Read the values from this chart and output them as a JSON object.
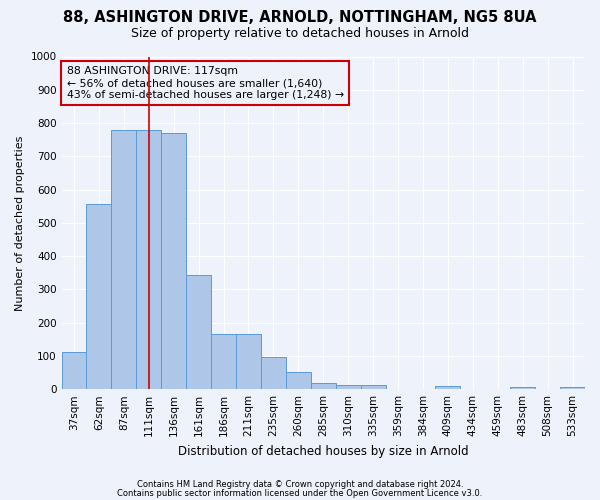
{
  "title1": "88, ASHINGTON DRIVE, ARNOLD, NOTTINGHAM, NG5 8UA",
  "title2": "Size of property relative to detached houses in Arnold",
  "xlabel": "Distribution of detached houses by size in Arnold",
  "ylabel": "Number of detached properties",
  "bar_labels": [
    "37sqm",
    "62sqm",
    "87sqm",
    "111sqm",
    "136sqm",
    "161sqm",
    "186sqm",
    "211sqm",
    "235sqm",
    "260sqm",
    "285sqm",
    "310sqm",
    "335sqm",
    "359sqm",
    "384sqm",
    "409sqm",
    "434sqm",
    "459sqm",
    "483sqm",
    "508sqm",
    "533sqm"
  ],
  "bar_values": [
    112,
    557,
    778,
    778,
    770,
    342,
    165,
    165,
    98,
    53,
    18,
    13,
    13,
    0,
    0,
    10,
    0,
    0,
    7,
    0,
    7
  ],
  "bar_color": "#aec6e8",
  "bar_edge_color": "#5b9bd5",
  "vline_x": 3.0,
  "vline_color": "#cc0000",
  "annotation_text": "88 ASHINGTON DRIVE: 117sqm\n← 56% of detached houses are smaller (1,640)\n43% of semi-detached houses are larger (1,248) →",
  "annotation_box_color": "#cc0000",
  "footer1": "Contains HM Land Registry data © Crown copyright and database right 2024.",
  "footer2": "Contains public sector information licensed under the Open Government Licence v3.0.",
  "ylim": [
    0,
    1000
  ],
  "yticks": [
    0,
    100,
    200,
    300,
    400,
    500,
    600,
    700,
    800,
    900,
    1000
  ],
  "background_color": "#eef2fb",
  "grid_color": "#ffffff",
  "title_fontsize": 10.5,
  "subtitle_fontsize": 9,
  "ylabel_fontsize": 8,
  "xlabel_fontsize": 8.5,
  "tick_fontsize": 7.5,
  "annot_fontsize": 7.8,
  "footer_fontsize": 6.0
}
